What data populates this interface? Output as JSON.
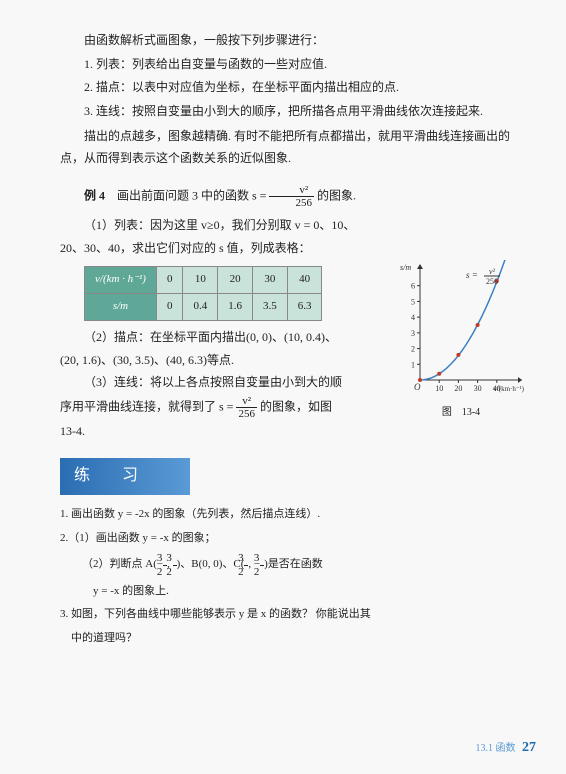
{
  "intro": "由函数解析式画图象，一般按下列步骤进行：",
  "steps": [
    "1. 列表：列表给出自变量与函数的一些对应值.",
    "2. 描点：以表中对应值为坐标，在坐标平面内描出相应的点.",
    "3. 连线：按照自变量由小到大的顺序，把所描各点用平滑曲线依次连接起来."
  ],
  "note": "描出的点越多，图象越精确. 有时不能把所有点都描出，就用平滑曲线连接画出的点，从而得到表示这个函数关系的近似图象.",
  "ex_label": "例 4",
  "ex_prefix": "　画出前面问题 3 中的函数 s =",
  "ex_suffix": " 的图象.",
  "frac": {
    "num": "v²",
    "den": "256"
  },
  "p1_a": "（1）列表：因为这里 v≥0，我们分别取 v = 0、10、",
  "p1_b": "20、30、40，求出它们对应的 s 值，列成表格：",
  "table": {
    "row1_hdr": "v/(km · h⁻¹)",
    "row2_hdr": "s/m",
    "cols": [
      "0",
      "10",
      "20",
      "30",
      "40"
    ],
    "vals": [
      "0",
      "0.4",
      "1.6",
      "3.5",
      "6.3"
    ]
  },
  "p2_a": "（2）描点：在坐标平面内描出(0, 0)、(10, 0.4)、",
  "p2_b": "(20, 1.6)、(30, 3.5)、(40, 6.3)等点.",
  "p3_a": "（3）连线：将以上各点按照自变量由小到大的顺",
  "p3_b_pre": "序用平滑曲线连接，就得到了 s =",
  "p3_b_suf": " 的图象，如图",
  "p3_c": "13-4.",
  "chart": {
    "xlabel": "v/(km·h⁻¹)",
    "ylabel": "s/m",
    "formula_num": "v²",
    "formula_den": "256",
    "xticks": [
      "10",
      "20",
      "30",
      "40"
    ],
    "yticks": [
      "1",
      "2",
      "3",
      "4",
      "5",
      "6"
    ],
    "points": [
      [
        0,
        0
      ],
      [
        10,
        0.4
      ],
      [
        20,
        1.6
      ],
      [
        30,
        3.5
      ],
      [
        40,
        6.3
      ]
    ],
    "curve_color": "#3b7fc4",
    "point_color": "#c0392b",
    "axis_color": "#333",
    "caption": "图　13-4"
  },
  "section_title": "练　习",
  "ex1": "1. 画出函数 y = -2x 的图象（先列表，然后描点连线）.",
  "ex2": "2.（1）画出函数 y = -x 的图象；",
  "ex2b_pre": "（2）判断点 A",
  "ex2b_A": {
    "x": "3",
    "xden": "2",
    "y": "3",
    "yden": "2",
    "xs": "-"
  },
  "ex2b_mid": "、B(0, 0)、C",
  "ex2b_C": {
    "x": "3",
    "xden": "2",
    "y": "3",
    "yden": "2",
    "ys": "-"
  },
  "ex2b_suf": "是否在函数",
  "ex2c": "y = -x 的图象上.",
  "ex3a": "3. 如图，下列各曲线中哪些能够表示 y 是 x 的函数？ 你能说出其",
  "ex3b": "中的道理吗？",
  "footer_label": "13.1 函数",
  "page_num": "27"
}
